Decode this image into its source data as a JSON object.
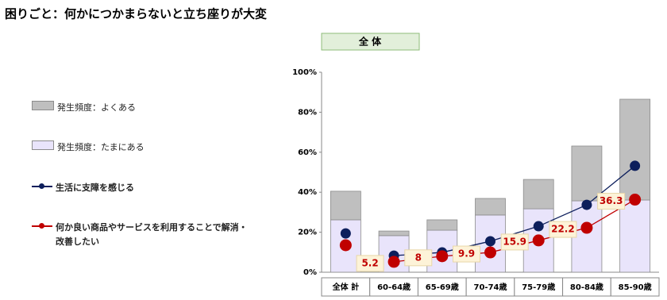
{
  "chart_data": {
    "type": "bar-line",
    "title": "困りごと：何かにつかまらないと立ち座りが大変",
    "subtitle": "全 体",
    "categories": [
      "全体 計",
      "60-64歳",
      "65-69歳",
      "70-74歳",
      "75-79歳",
      "80-84歳",
      "85-90歳"
    ],
    "series": [
      {
        "name": "発生頻度：よくある",
        "kind": "bar",
        "color": "#bfbfbf",
        "values": [
          14.3,
          2.3,
          5.2,
          8.3,
          14.7,
          27.4,
          50.4
        ]
      },
      {
        "name": "発生頻度：たまにある",
        "kind": "bar",
        "color": "#e9e4fb",
        "values": [
          26.2,
          18.3,
          21.0,
          28.6,
          31.7,
          35.7,
          36.1
        ]
      },
      {
        "name": "生活に支障を感じる",
        "kind": "line",
        "color": "#0d1f5c",
        "values": [
          19.4,
          8.3,
          9.9,
          15.5,
          23.0,
          33.7,
          53.2
        ]
      },
      {
        "name": "何か良い商品やサービスを利用することで解消・改善したい",
        "kind": "line",
        "color": "#c00000",
        "labels": true,
        "values": [
          13.5,
          5.2,
          8.0,
          9.9,
          15.9,
          22.2,
          36.3
        ]
      }
    ],
    "ylim": [
      0,
      100
    ],
    "yticks": [
      {
        "value": 0,
        "label": "0%"
      },
      {
        "value": 20,
        "label": "20%"
      },
      {
        "value": 40,
        "label": "40%"
      },
      {
        "value": 60,
        "label": "60%"
      },
      {
        "value": 80,
        "label": "80%"
      },
      {
        "value": 100,
        "label": "100%"
      }
    ]
  }
}
